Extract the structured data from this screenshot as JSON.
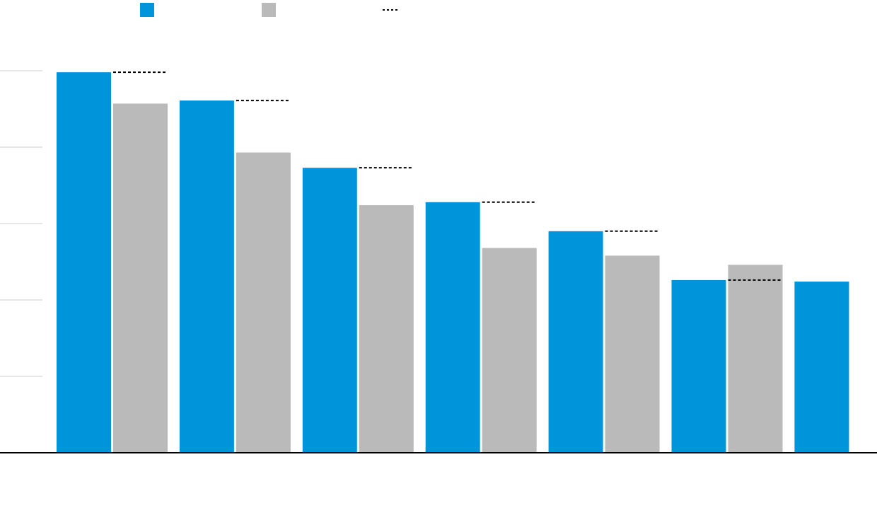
{
  "chart_data": {
    "type": "bar",
    "categories": [
      null,
      null,
      null,
      null,
      null,
      null,
      null
    ],
    "series": [
      {
        "color": "#0095db",
        "values": [
          4.98,
          4.61,
          3.73,
          3.28,
          2.9,
          2.26,
          2.24
        ]
      },
      {
        "color": "#bababa",
        "values": [
          4.57,
          3.93,
          3.24,
          2.68,
          2.58,
          2.46,
          null
        ]
      },
      {
        "color": "#000000",
        "style": "dashed",
        "values": [
          4.98,
          4.61,
          3.73,
          3.28,
          2.9,
          2.26,
          null
        ]
      }
    ],
    "ylim": [
      0,
      5.5
    ],
    "gridlines": [
      1,
      2,
      3,
      4,
      5
    ],
    "grid": true
  }
}
